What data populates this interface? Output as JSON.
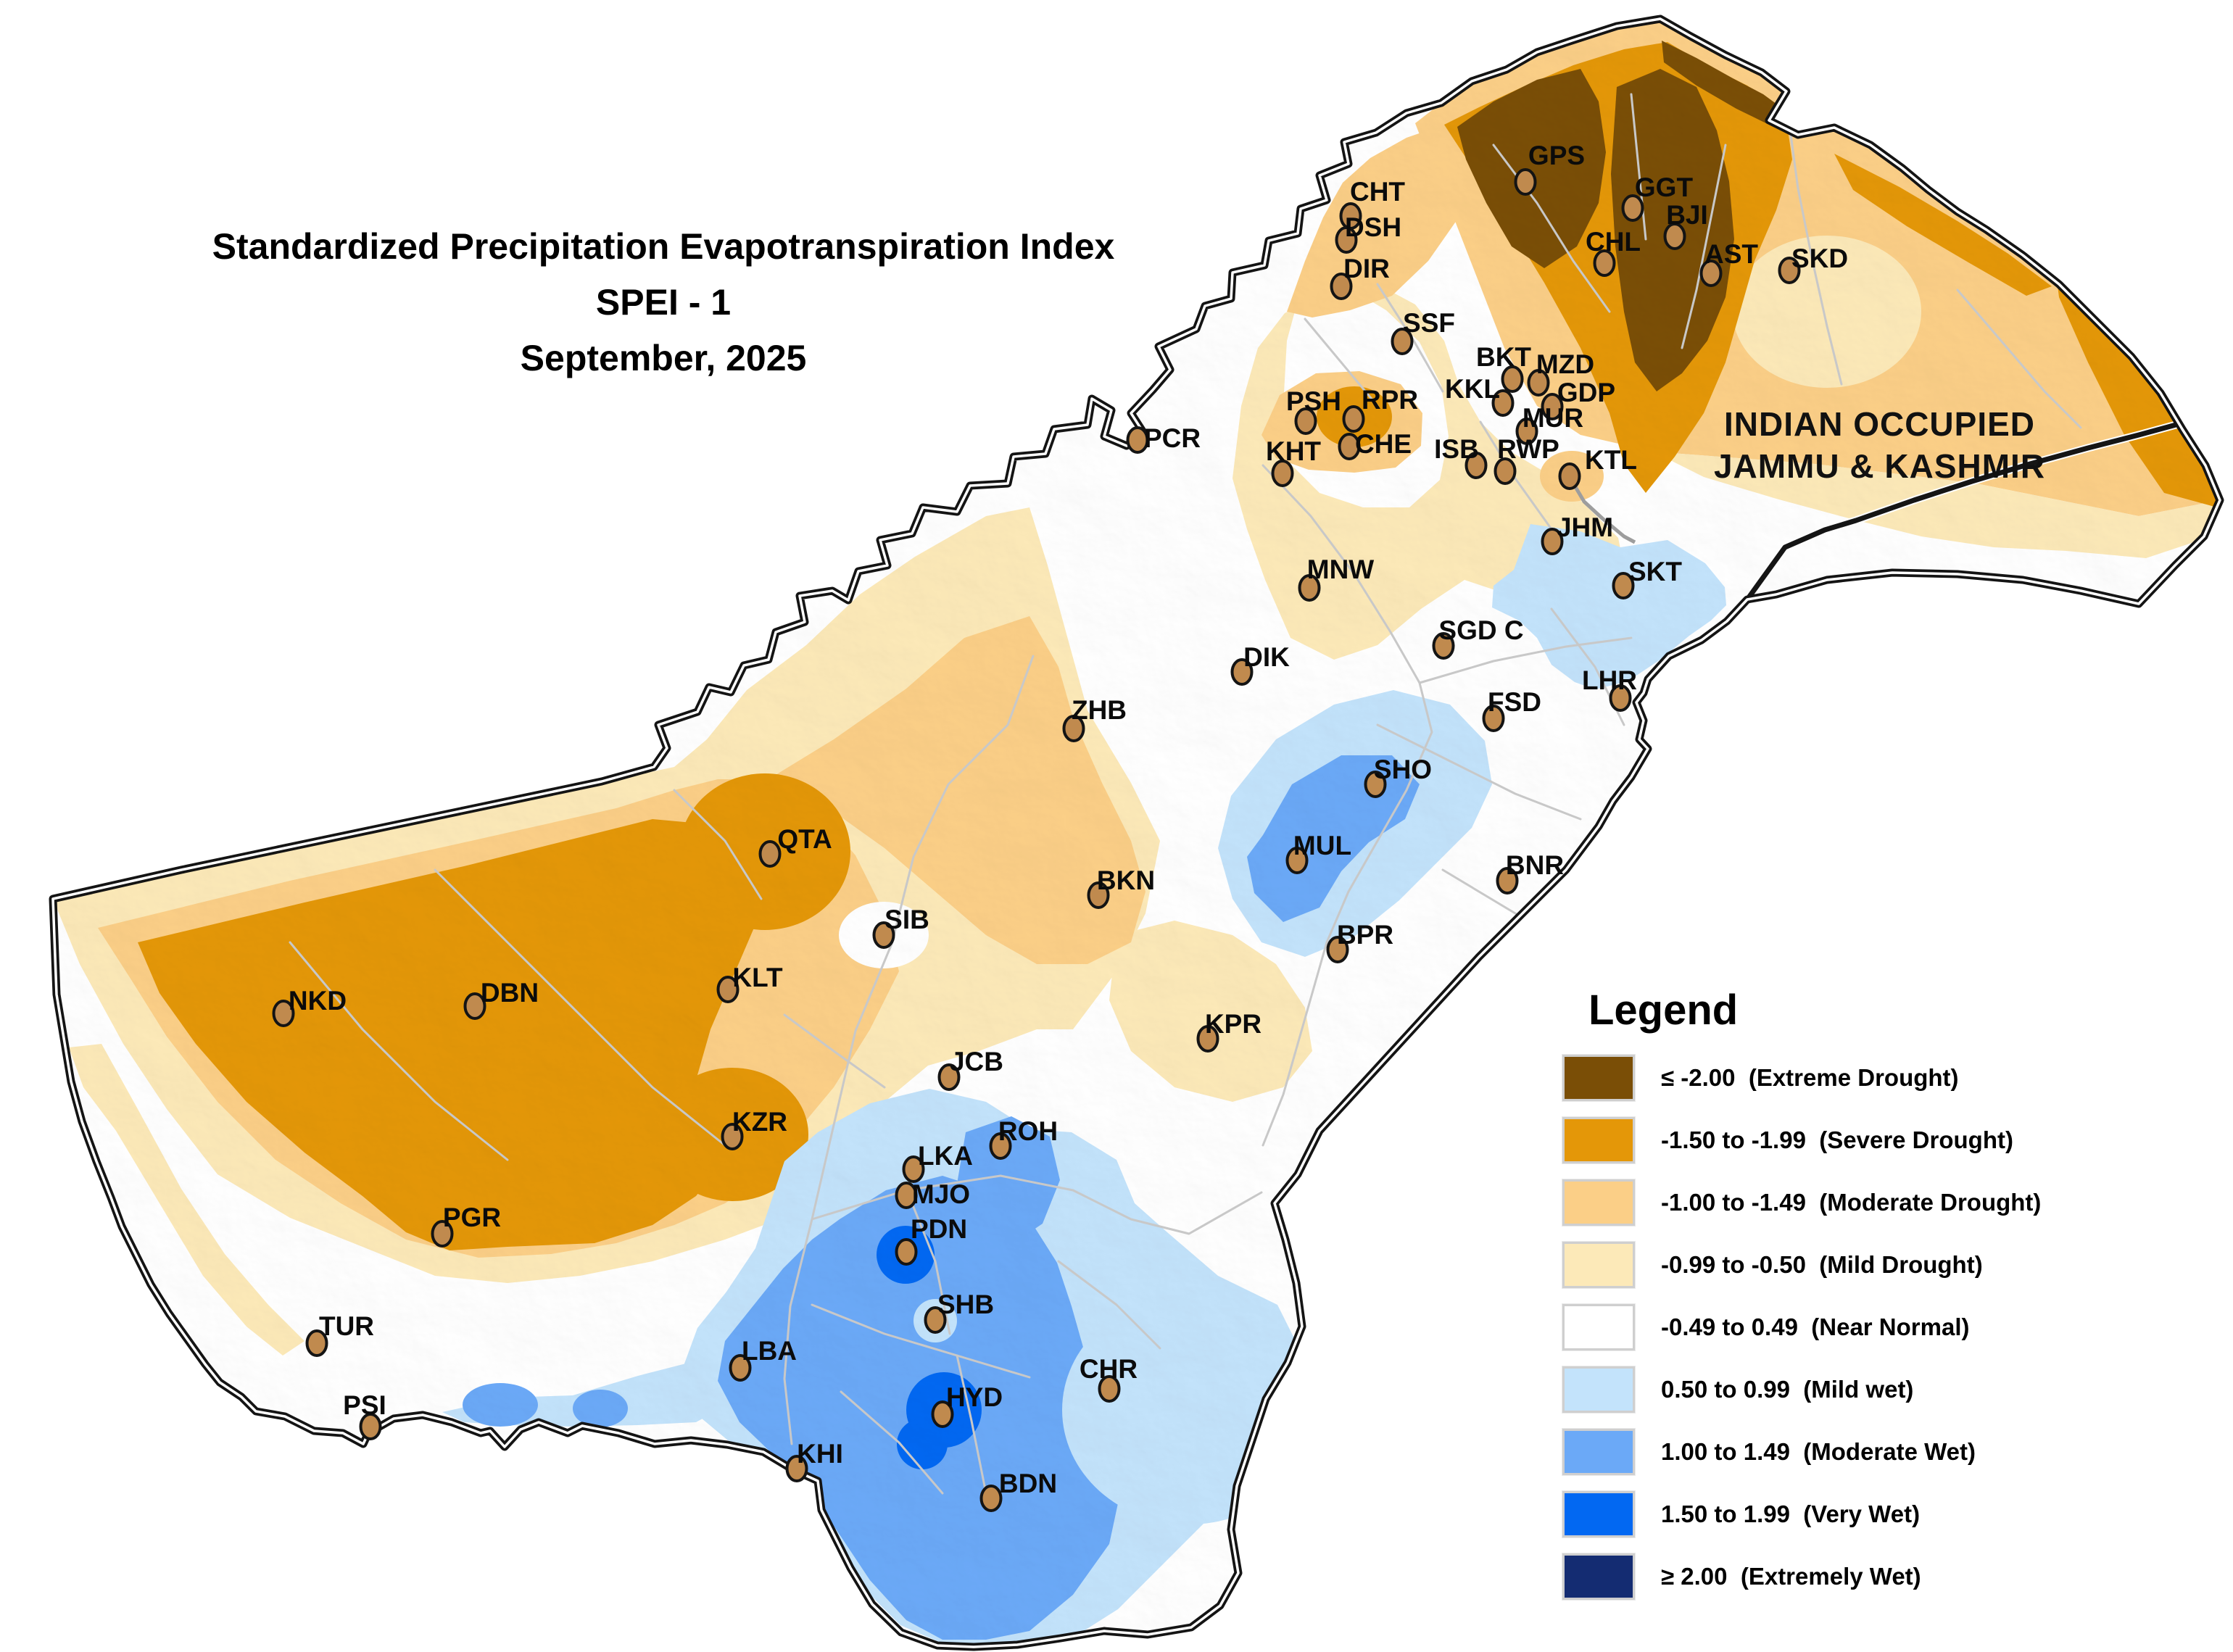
{
  "title": {
    "line1": "Standardized Precipitation Evapotranspiration Index",
    "line2": "SPEI - 1",
    "line3": "September, 2025"
  },
  "region_label": {
    "line1": "INDIAN OCCUPIED",
    "line2": "JAMMU & KASHMIR"
  },
  "legend": {
    "title": "Legend",
    "items": [
      {
        "range": "≤ -2.00",
        "name": "Extreme Drought",
        "color": "#7A4E06"
      },
      {
        "range": "-1.50 to -1.99",
        "name": "Severe Drought",
        "color": "#E49708"
      },
      {
        "range": "-1.00 to -1.49",
        "name": "Moderate Drought",
        "color": "#FBCF87"
      },
      {
        "range": "-0.99 to -0.50",
        "name": "Mild Drought",
        "color": "#FCE9B8"
      },
      {
        "range": "-0.49 to 0.49",
        "name": "Near Normal",
        "color": "#FFFFFF"
      },
      {
        "range": "0.50 to 0.99",
        "name": "Mild wet",
        "color": "#C3E3FB"
      },
      {
        "range": "1.00 to 1.49",
        "name": "Moderate Wet",
        "color": "#6BA9F7"
      },
      {
        "range": "1.50 to 1.99",
        "name": "Very Wet",
        "color": "#0268F2"
      },
      {
        "range": "≥ 2.00",
        "name": "Extremely Wet",
        "color": "#142C72"
      }
    ]
  },
  "marker": {
    "fill": "#C08A4E",
    "stroke": "#141414"
  },
  "map": {
    "background": "#FFFFFF",
    "boundary_color": "#141414",
    "district_line_color": "#c8c8c8"
  },
  "stations": [
    {
      "code": "GPS",
      "label": [
        2147,
        214
      ],
      "dot": [
        2104,
        251
      ]
    },
    {
      "code": "CHT",
      "label": [
        1900,
        264
      ],
      "dot": [
        1863,
        298
      ]
    },
    {
      "code": "GGT",
      "label": [
        2295,
        258
      ],
      "dot": [
        2252,
        287
      ]
    },
    {
      "code": "DSH",
      "label": [
        1894,
        313
      ],
      "dot": [
        1857,
        331
      ]
    },
    {
      "code": "BJI",
      "label": [
        2327,
        296
      ],
      "dot": [
        2310,
        326
      ]
    },
    {
      "code": "CHL",
      "label": [
        2225,
        333
      ],
      "dot": [
        2213,
        363
      ]
    },
    {
      "code": "AST",
      "label": [
        2388,
        350
      ],
      "dot": [
        2360,
        377
      ]
    },
    {
      "code": "SKD",
      "label": [
        2510,
        356
      ],
      "dot": [
        2468,
        373
      ]
    },
    {
      "code": "DIR",
      "label": [
        1885,
        370
      ],
      "dot": [
        1850,
        395
      ]
    },
    {
      "code": "SSF",
      "label": [
        1971,
        445
      ],
      "dot": [
        1934,
        471
      ]
    },
    {
      "code": "BKT",
      "label": [
        2074,
        492
      ],
      "dot": [
        2086,
        523
      ]
    },
    {
      "code": "MZD",
      "label": [
        2159,
        502
      ],
      "dot": [
        2122,
        528
      ]
    },
    {
      "code": "KKL",
      "label": [
        2031,
        536
      ],
      "dot": [
        2073,
        556
      ]
    },
    {
      "code": "GDP",
      "label": [
        2188,
        541
      ],
      "dot": [
        2141,
        561
      ]
    },
    {
      "code": "PSH",
      "label": [
        1812,
        553
      ],
      "dot": [
        1801,
        581
      ]
    },
    {
      "code": "RPR",
      "label": [
        1917,
        551
      ],
      "dot": [
        1867,
        578
      ]
    },
    {
      "code": "MUR",
      "label": [
        2142,
        576
      ],
      "dot": [
        2106,
        595
      ]
    },
    {
      "code": "PCR",
      "label": [
        1617,
        604
      ],
      "dot": [
        1569,
        607
      ]
    },
    {
      "code": "CHE",
      "label": [
        1908,
        612
      ],
      "dot": [
        1861,
        616
      ]
    },
    {
      "code": "ISB",
      "label": [
        2009,
        619
      ],
      "dot": [
        2036,
        642
      ]
    },
    {
      "code": "RWP",
      "label": [
        2108,
        619
      ],
      "dot": [
        2076,
        650
      ]
    },
    {
      "code": "KTL",
      "label": [
        2222,
        634
      ],
      "dot": [
        2165,
        657
      ]
    },
    {
      "code": "KHT",
      "label": [
        1784,
        622
      ],
      "dot": [
        1769,
        653
      ]
    },
    {
      "code": "JHM",
      "label": [
        2186,
        727
      ],
      "dot": [
        2141,
        747
      ]
    },
    {
      "code": "MNW",
      "label": [
        1849,
        785
      ],
      "dot": [
        1806,
        811
      ]
    },
    {
      "code": "SKT",
      "label": [
        2283,
        788
      ],
      "dot": [
        2239,
        808
      ]
    },
    {
      "code": "SGD C",
      "label": [
        2043,
        869
      ],
      "dot": [
        1991,
        891
      ]
    },
    {
      "code": "DIK",
      "label": [
        1747,
        906
      ],
      "dot": [
        1713,
        927
      ]
    },
    {
      "code": "FSD",
      "label": [
        2089,
        968
      ],
      "dot": [
        2060,
        991
      ]
    },
    {
      "code": "LHR",
      "label": [
        2220,
        938
      ],
      "dot": [
        2235,
        963
      ]
    },
    {
      "code": "ZHB",
      "label": [
        1516,
        979
      ],
      "dot": [
        1481,
        1005
      ]
    },
    {
      "code": "SHO",
      "label": [
        1935,
        1061
      ],
      "dot": [
        1897,
        1082
      ]
    },
    {
      "code": "MUL",
      "label": [
        1824,
        1166
      ],
      "dot": [
        1789,
        1187
      ]
    },
    {
      "code": "BNR",
      "label": [
        2117,
        1193
      ],
      "dot": [
        2079,
        1215
      ]
    },
    {
      "code": "QTA",
      "label": [
        1110,
        1157
      ],
      "dot": [
        1062,
        1178
      ]
    },
    {
      "code": "BKN",
      "label": [
        1553,
        1214
      ],
      "dot": [
        1515,
        1235
      ]
    },
    {
      "code": "SIB",
      "label": [
        1251,
        1268
      ],
      "dot": [
        1219,
        1290
      ]
    },
    {
      "code": "BPR",
      "label": [
        1883,
        1289
      ],
      "dot": [
        1845,
        1310
      ]
    },
    {
      "code": "KLT",
      "label": [
        1045,
        1348
      ],
      "dot": [
        1004,
        1365
      ]
    },
    {
      "code": "NKD",
      "label": [
        438,
        1380
      ],
      "dot": [
        391,
        1398
      ]
    },
    {
      "code": "DBN",
      "label": [
        703,
        1369
      ],
      "dot": [
        655,
        1388
      ]
    },
    {
      "code": "KPR",
      "label": [
        1701,
        1412
      ],
      "dot": [
        1666,
        1433
      ]
    },
    {
      "code": "JCB",
      "label": [
        1347,
        1464
      ],
      "dot": [
        1309,
        1486
      ]
    },
    {
      "code": "KZR",
      "label": [
        1048,
        1547
      ],
      "dot": [
        1010,
        1568
      ]
    },
    {
      "code": "ROH",
      "label": [
        1418,
        1560
      ],
      "dot": [
        1380,
        1581
      ]
    },
    {
      "code": "LKA",
      "label": [
        1304,
        1594
      ],
      "dot": [
        1260,
        1613
      ]
    },
    {
      "code": "MJO",
      "label": [
        1298,
        1647
      ],
      "dot": [
        1250,
        1649
      ]
    },
    {
      "code": "PGR",
      "label": [
        651,
        1679
      ],
      "dot": [
        610,
        1702
      ]
    },
    {
      "code": "PDN",
      "label": [
        1295,
        1695
      ],
      "dot": [
        1250,
        1727
      ]
    },
    {
      "code": "SHB",
      "label": [
        1332,
        1799
      ],
      "dot": [
        1290,
        1821
      ]
    },
    {
      "code": "TUR",
      "label": [
        478,
        1829
      ],
      "dot": [
        437,
        1853
      ]
    },
    {
      "code": "LBA",
      "label": [
        1061,
        1863
      ],
      "dot": [
        1021,
        1887
      ]
    },
    {
      "code": "CHR",
      "label": [
        1529,
        1888
      ],
      "dot": [
        1530,
        1916
      ]
    },
    {
      "code": "PSI",
      "label": [
        503,
        1938
      ],
      "dot": [
        511,
        1968
      ]
    },
    {
      "code": "HYD",
      "label": [
        1344,
        1927
      ],
      "dot": [
        1300,
        1951
      ]
    },
    {
      "code": "KHI",
      "label": [
        1131,
        2005
      ],
      "dot": [
        1099,
        2026
      ]
    },
    {
      "code": "BDN",
      "label": [
        1418,
        2046
      ],
      "dot": [
        1367,
        2067
      ]
    }
  ]
}
